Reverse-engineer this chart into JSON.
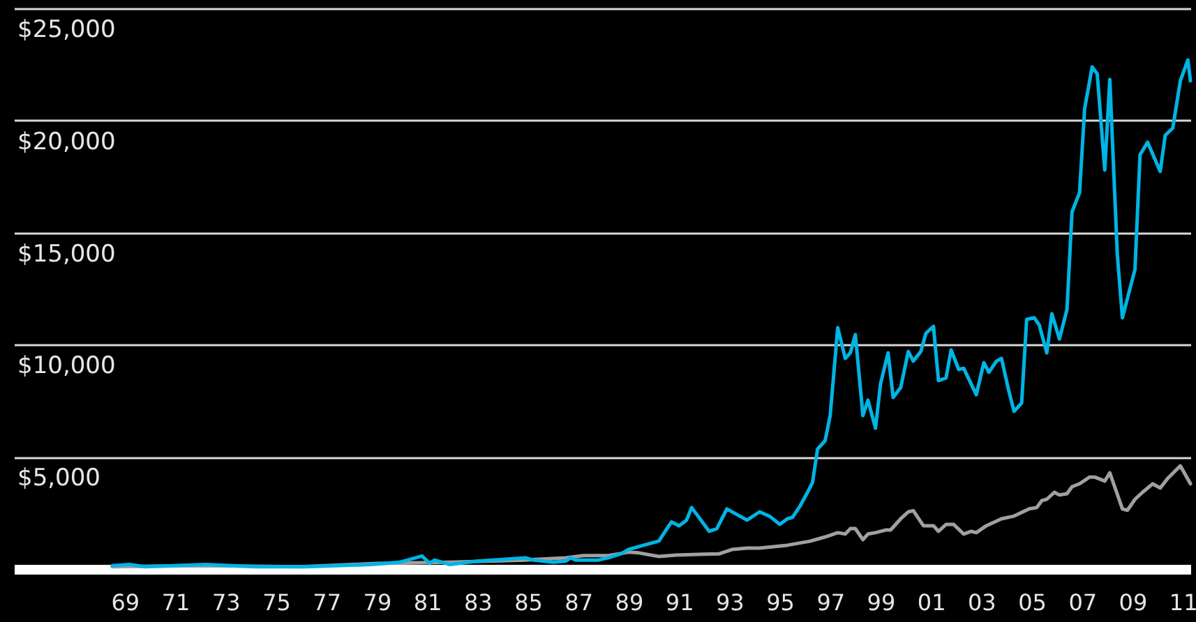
{
  "chart_data": {
    "type": "line",
    "xlim": [
      1964.6,
      2011.3
    ],
    "ylim": [
      0,
      25000
    ],
    "xticks": [
      {
        "value": 1969,
        "label": "69"
      },
      {
        "value": 1971,
        "label": "71"
      },
      {
        "value": 1973,
        "label": "73"
      },
      {
        "value": 1975,
        "label": "75"
      },
      {
        "value": 1977,
        "label": "77"
      },
      {
        "value": 1979,
        "label": "79"
      },
      {
        "value": 1981,
        "label": "81"
      },
      {
        "value": 1983,
        "label": "83"
      },
      {
        "value": 1985,
        "label": "85"
      },
      {
        "value": 1987,
        "label": "87"
      },
      {
        "value": 1989,
        "label": "89"
      },
      {
        "value": 1991,
        "label": "91"
      },
      {
        "value": 1993,
        "label": "93"
      },
      {
        "value": 1995,
        "label": "95"
      },
      {
        "value": 1997,
        "label": "97"
      },
      {
        "value": 1999,
        "label": "99"
      },
      {
        "value": 2001,
        "label": "01"
      },
      {
        "value": 2003,
        "label": "03"
      },
      {
        "value": 2005,
        "label": "05"
      },
      {
        "value": 2007,
        "label": "07"
      },
      {
        "value": 2009,
        "label": "09"
      },
      {
        "value": 2011,
        "label": "11"
      }
    ],
    "yticks": [
      {
        "value": 0,
        "label": null
      },
      {
        "value": 5000,
        "label": "$5,000"
      },
      {
        "value": 10000,
        "label": "$10,000"
      },
      {
        "value": 15000,
        "label": "$15,000"
      },
      {
        "value": 20000,
        "label": "$20,000"
      },
      {
        "value": 25000,
        "label": "$25,000"
      }
    ],
    "grid": "y",
    "series": [
      {
        "color": "#a0a0a0",
        "x": [
          1968.5,
          1972,
          1976,
          1979,
          1981.9,
          1984.9,
          1986.5,
          1987.2,
          1988.2,
          1989.0,
          1989.4,
          1990.2,
          1990.9,
          1992.6,
          1993.1,
          1993.7,
          1994.2,
          1995.3,
          1996.2,
          1996.8,
          1997.3,
          1997.6,
          1997.8,
          1998.0,
          1998.3,
          1998.5,
          1998.8,
          1999.2,
          1999.4,
          1999.8,
          2000.1,
          2000.3,
          2000.7,
          2001.1,
          2001.3,
          2001.6,
          2001.9,
          2002.3,
          2002.6,
          2002.8,
          2003.2,
          2003.8,
          2004.3,
          2004.9,
          2005.2,
          2005.4,
          2005.6,
          2005.9,
          2006.1,
          2006.4,
          2006.6,
          2006.9,
          2007.3,
          2007.5,
          2007.9,
          2008.1,
          2008.6,
          2008.8,
          2009.1,
          2009.4,
          2009.8,
          2010.1,
          2010.4,
          2010.9,
          2011.3
        ],
        "values": [
          100,
          150,
          100,
          250,
          300,
          400,
          500,
          600,
          600,
          750,
          720,
          560,
          620,
          680,
          870,
          930,
          930,
          1060,
          1240,
          1430,
          1620,
          1560,
          1800,
          1800,
          1310,
          1560,
          1620,
          1740,
          1740,
          2240,
          2550,
          2600,
          1930,
          1930,
          1680,
          1990,
          1990,
          1560,
          1680,
          1620,
          1930,
          2240,
          2360,
          2680,
          2740,
          3050,
          3110,
          3420,
          3300,
          3360,
          3670,
          3800,
          4100,
          4100,
          3920,
          4290,
          2680,
          2620,
          3110,
          3420,
          3800,
          3610,
          4040,
          4600,
          3800
        ]
      },
      {
        "color": "#00b4e4",
        "x": [
          1968.5,
          1969.2,
          1969.8,
          1972.2,
          1974.2,
          1976.2,
          1978.8,
          1979.9,
          1980.8,
          1981.1,
          1981.3,
          1981.9,
          1983.0,
          1984.9,
          1985.2,
          1986.0,
          1986.5,
          1986.7,
          1986.9,
          1987.8,
          1988.2,
          1988.7,
          1989.0,
          1989.4,
          1990.2,
          1990.7,
          1991.0,
          1991.3,
          1991.5,
          1992.2,
          1992.5,
          1992.9,
          1993.7,
          1994.2,
          1994.6,
          1995.0,
          1995.3,
          1995.5,
          1995.8,
          1996.1,
          1996.3,
          1996.5,
          1996.8,
          1997.0,
          1997.3,
          1997.6,
          1997.8,
          1998.0,
          1998.3,
          1998.5,
          1998.8,
          1999.0,
          1999.3,
          1999.5,
          1999.8,
          2000.1,
          2000.3,
          2000.6,
          2000.8,
          2001.1,
          2001.3,
          2001.6,
          2001.8,
          2002.1,
          2002.3,
          2002.8,
          2003.1,
          2003.3,
          2003.6,
          2003.8,
          2004.1,
          2004.3,
          2004.6,
          2004.8,
          2005.1,
          2005.3,
          2005.6,
          2005.8,
          2006.1,
          2006.4,
          2006.6,
          2006.9,
          2007.1,
          2007.4,
          2007.6,
          2007.9,
          2008.1,
          2008.4,
          2008.6,
          2009.1,
          2009.3,
          2009.6,
          2010.1,
          2010.3,
          2010.6,
          2010.9,
          2011.2,
          2011.3
        ],
        "values": [
          150,
          200,
          100,
          200,
          100,
          100,
          200,
          300,
          580,
          250,
          400,
          200,
          350,
          500,
          400,
          300,
          350,
          500,
          400,
          400,
          500,
          680,
          870,
          1000,
          1250,
          2100,
          1930,
          2180,
          2740,
          1680,
          1800,
          2680,
          2180,
          2550,
          2350,
          1990,
          2240,
          2300,
          2800,
          3420,
          3860,
          5350,
          5720,
          6840,
          10760,
          9390,
          9640,
          10450,
          6840,
          7530,
          6280,
          8270,
          9640,
          7650,
          8090,
          9700,
          9270,
          9700,
          10510,
          10820,
          8400,
          8520,
          9770,
          8900,
          8950,
          7770,
          9200,
          8770,
          9270,
          9390,
          7900,
          7030,
          7400,
          11130,
          11200,
          10880,
          9640,
          11380,
          10260,
          11570,
          15920,
          16790,
          20520,
          22390,
          22080,
          17790,
          21830,
          13990,
          11200,
          13370,
          18470,
          19030,
          17730,
          19340,
          19660,
          21770,
          22700,
          21770
        ]
      }
    ]
  }
}
